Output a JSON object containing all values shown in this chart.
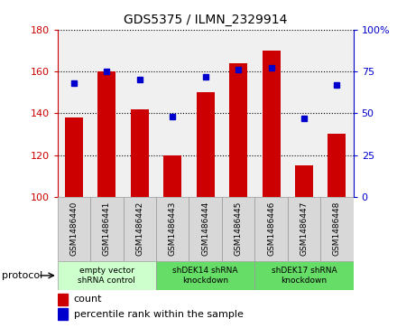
{
  "title": "GDS5375 / ILMN_2329914",
  "samples": [
    "GSM1486440",
    "GSM1486441",
    "GSM1486442",
    "GSM1486443",
    "GSM1486444",
    "GSM1486445",
    "GSM1486446",
    "GSM1486447",
    "GSM1486448"
  ],
  "counts": [
    138,
    160,
    142,
    120,
    150,
    164,
    170,
    115,
    130
  ],
  "percentiles": [
    68,
    75,
    70,
    48,
    72,
    76,
    77,
    47,
    67
  ],
  "ymin": 100,
  "ymax": 180,
  "yticks": [
    100,
    120,
    140,
    160,
    180
  ],
  "y2min": 0,
  "y2max": 100,
  "y2ticks": [
    0,
    25,
    50,
    75,
    100
  ],
  "bar_color": "#cc0000",
  "dot_color": "#0000cc",
  "groups": [
    {
      "label": "empty vector\nshRNA control",
      "start": 0,
      "end": 3,
      "color": "#ccffcc"
    },
    {
      "label": "shDEK14 shRNA\nknockdown",
      "start": 3,
      "end": 6,
      "color": "#66dd66"
    },
    {
      "label": "shDEK17 shRNA\nknockdown",
      "start": 6,
      "end": 9,
      "color": "#66dd66"
    }
  ],
  "protocol_label": "protocol",
  "legend_count_label": "count",
  "legend_percentile_label": "percentile rank within the sample",
  "grid_color": "#000000",
  "tick_color_left": "#cc0000",
  "tick_color_right": "#0000cc",
  "bar_width": 0.55,
  "bg_color_plot": "#ffffff",
  "bg_color_fig": "#ffffff",
  "sample_bg_color": "#d8d8d8",
  "plot_bg_color": "#f0f0f0"
}
